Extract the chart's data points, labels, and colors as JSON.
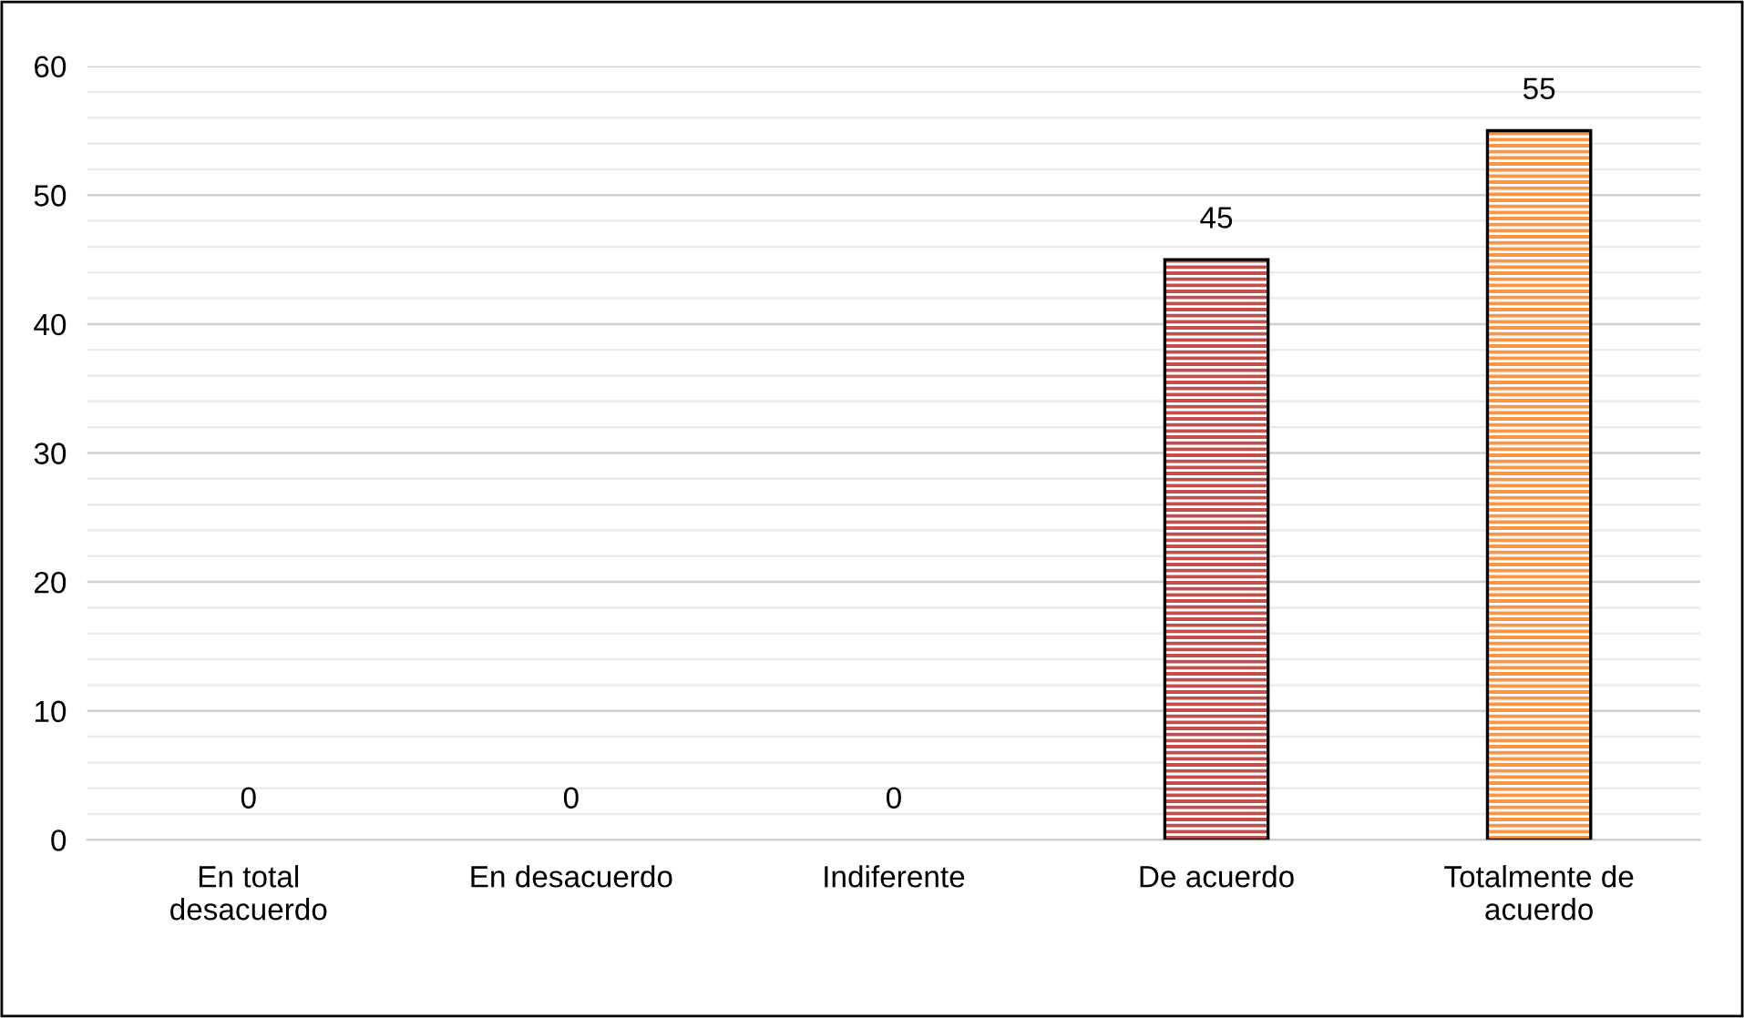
{
  "chart_data": {
    "type": "bar",
    "categories": [
      "En total\ndesacuerdo",
      "En desacuerdo",
      "Indiferente",
      "De acuerdo",
      "Totalmente de\nacuerdo"
    ],
    "values": [
      0,
      0,
      0,
      45,
      55
    ],
    "colors": [
      "#c0504d",
      "#c0504d",
      "#c0504d",
      "#c0504d",
      "#f79646"
    ],
    "ylim": [
      0,
      60
    ],
    "yticks": [
      0,
      {
        "value": 2,
        "label": null
      },
      {
        "value": 4,
        "label": null
      },
      {
        "value": 6,
        "label": null
      },
      {
        "value": 8,
        "label": null
      },
      10,
      {
        "value": 12,
        "label": null
      },
      {
        "value": 14,
        "label": null
      },
      {
        "value": 16,
        "label": null
      },
      {
        "value": 18,
        "label": null
      },
      20,
      {
        "value": 22,
        "label": null
      },
      {
        "value": 24,
        "label": null
      },
      {
        "value": 26,
        "label": null
      },
      {
        "value": 28,
        "label": null
      },
      30,
      {
        "value": 32,
        "label": null
      },
      {
        "value": 34,
        "label": null
      },
      {
        "value": 36,
        "label": null
      },
      {
        "value": 38,
        "label": null
      },
      40,
      {
        "value": 42,
        "label": null
      },
      {
        "value": 44,
        "label": null
      },
      {
        "value": 46,
        "label": null
      },
      {
        "value": 48,
        "label": null
      },
      50,
      {
        "value": 52,
        "label": null
      },
      {
        "value": 54,
        "label": null
      },
      {
        "value": 56,
        "label": null
      },
      {
        "value": 58,
        "label": null
      },
      60
    ],
    "grid": true,
    "data_labels": true
  }
}
